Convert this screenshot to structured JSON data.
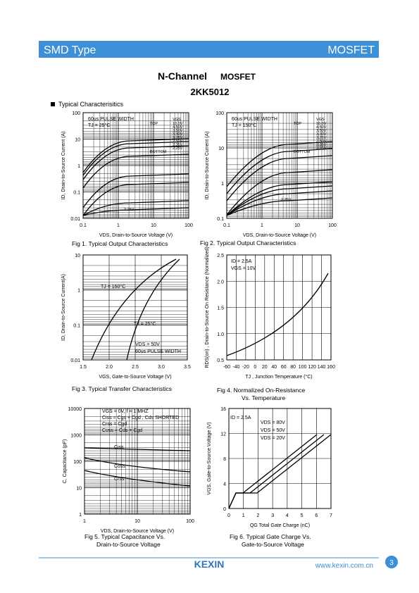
{
  "header": {
    "left": "SMD Type",
    "right": "MOSFET"
  },
  "title": {
    "line1": "N-Channel",
    "line1b": "MOSFET",
    "part": "2KK5012"
  },
  "section": "Typical  Characterisitics",
  "figures": [
    {
      "caption": [
        "Fig 1.  Typical Output Characteristics"
      ],
      "x_label": "VDS, Drain-to-Source Voltage (V)",
      "y_label": "ID, Drain-to-Source Current (A)",
      "xticks": [
        "0.1",
        "1",
        "10",
        "100"
      ],
      "yticks": [
        "100",
        "10",
        "1",
        "0.1",
        "0.01"
      ],
      "notes": [
        "60us  PULSE WIDTH",
        "TJ = 25°C",
        "TOP",
        "BOTTOM",
        "VGS",
        "10.0V",
        "4.50V",
        "3.50V",
        "3.30V",
        "3.25V",
        "2.50V",
        "2.35V",
        "2.25V",
        "2.25V"
      ]
    },
    {
      "caption": [
        "Fig 2.  Typical Output Characteristics"
      ],
      "x_label": "VDS, Drain-to-Source Voltage (V)",
      "y_label": "ID, Drain-to-Source Current (A)",
      "xticks": [
        "0.1",
        "1",
        "10",
        "100"
      ],
      "yticks": [
        "100",
        "10",
        "1",
        "0.1"
      ],
      "notes": [
        "60us  PULSE WIDTH",
        "TJ = 150°C",
        "TOP",
        "BOTTOM",
        "VGS",
        "10.0V",
        "4.50V",
        "3.50V",
        "3.30V",
        "3.25V",
        "2.50V",
        "2.35V",
        "2.25V",
        "2.25V"
      ]
    },
    {
      "caption": [
        "Fig 3.  Typical Transfer Characteristics"
      ],
      "x_label": "VGS, Gate-to-Source Voltage (V)",
      "y_label": "ID, Drain-to-Source Current(A)",
      "xticks": [
        "1.5",
        "2.0",
        "2.5",
        "3.0",
        "3.5"
      ],
      "yticks": [
        "10",
        "1",
        "0.1",
        "0.01"
      ],
      "notes": [
        "TJ = 150°C",
        "TJ = 25°C",
        "VDS = 50V",
        "60us PULSE WIDTH"
      ]
    },
    {
      "caption": [
        "Fig 4.  Normalized On-Resistance",
        "Vs. Temperature"
      ],
      "x_label": "TJ , Junction Temperature (°C)",
      "y_label": "RDS(on) , Drain-to-Source On Resistance (Normalized)",
      "xticks": [
        "-60",
        "-40",
        "-20",
        "0",
        "20",
        "40",
        "60",
        "80",
        "100",
        "120",
        "140",
        "160"
      ],
      "yticks": [
        "2.5",
        "2.0",
        "1.5",
        "1.0",
        "0.5"
      ],
      "notes": [
        "ID = 2.5A",
        "VGS = 10V"
      ]
    },
    {
      "caption": [
        "Fig 5.  Typical Capacitance Vs.",
        "Drain-to-Source Voltage"
      ],
      "x_label": "VDS, Drain-to-Source Voltage (V)",
      "y_label": "C, Capacitance (pF)",
      "xticks": [
        "1",
        "10",
        "100"
      ],
      "yticks": [
        "10000",
        "1000",
        "100",
        "10",
        "1"
      ],
      "notes": [
        "VGS = 0V,     f = 1 MHZ",
        "Ciss = Cgs + Cgd , Cds SHORTED",
        "Crss = Cgd",
        "Coss = Cds + Cgd",
        "Ciss",
        "Coss",
        "Crss"
      ]
    },
    {
      "caption": [
        "Fig 6.  Typical Gate Charge Vs.",
        "Gate-to-Source Voltage"
      ],
      "x_label": "QG  Total Gate Charge (nC)",
      "y_label": "VGS, Gate-to-Source Voltage (V)",
      "xticks": [
        "0",
        "1",
        "2",
        "3",
        "4",
        "5",
        "6",
        "7"
      ],
      "yticks": [
        "16",
        "12",
        "8",
        "4",
        "0"
      ],
      "notes": [
        "ID = 2.5A",
        "VDS = 80V",
        "VDS = 50V",
        "VDS = 20V"
      ]
    }
  ],
  "footer": {
    "logo": "KEXIN",
    "url": "www.kexin.com.cn",
    "page": "3"
  }
}
